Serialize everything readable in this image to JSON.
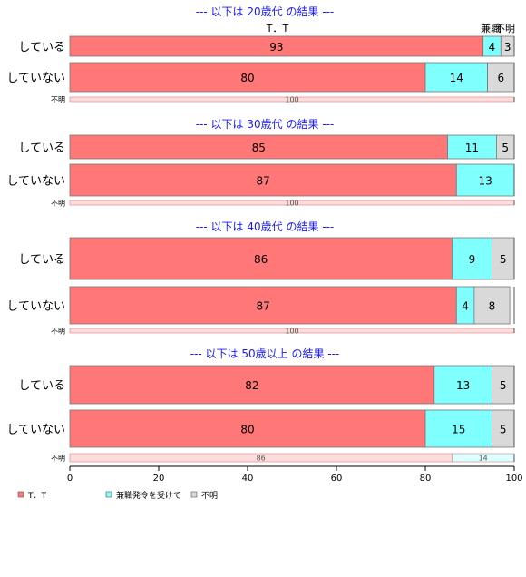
{
  "chart_data": {
    "type": "bar",
    "orientation": "horizontal",
    "stacked": true,
    "xlim": [
      0,
      100
    ],
    "x_ticks": [
      "0",
      "20",
      "40",
      "60",
      "80",
      "100"
    ],
    "column_headers": [
      "T．T",
      "兼職",
      "不明"
    ],
    "legend": {
      "placement": "bottom-left",
      "entries": [
        {
          "label": "T．T",
          "color": "#ff7777"
        },
        {
          "label": "兼職発令を受けて",
          "color": "#80ffff"
        },
        {
          "label": "不明",
          "color": "#d9d9d9"
        }
      ]
    },
    "series_colors": [
      "#ff7777",
      "#80ffff",
      "#d9d9d9"
    ],
    "small_row_colors": [
      "#ffdcdc",
      "#dcffff",
      "#f0f0f0"
    ],
    "panels": [
      {
        "title": "--- 以下は 20歳代 の結果 ---",
        "rows": [
          {
            "label": "している",
            "values": [
              93,
              4,
              3
            ]
          },
          {
            "label": "していない",
            "values": [
              80,
              14,
              6
            ]
          },
          {
            "label": "不明",
            "values": [
              100,
              0,
              0
            ],
            "small": true
          }
        ]
      },
      {
        "title": "--- 以下は 30歳代 の結果 ---",
        "rows": [
          {
            "label": "している",
            "values": [
              85,
              11,
              5
            ]
          },
          {
            "label": "していない",
            "values": [
              87,
              13,
              0
            ]
          },
          {
            "label": "不明",
            "values": [
              100,
              0,
              0
            ],
            "small": true
          }
        ]
      },
      {
        "title": "--- 以下は 40歳代 の結果 ---",
        "rows": [
          {
            "label": "している",
            "values": [
              86,
              9,
              5
            ]
          },
          {
            "label": "していない",
            "values": [
              87,
              4,
              8
            ]
          },
          {
            "label": "不明",
            "values": [
              100,
              0,
              0
            ],
            "small": true
          }
        ]
      },
      {
        "title": "--- 以下は 50歳以上 の結果 ---",
        "rows": [
          {
            "label": "している",
            "values": [
              82,
              13,
              5
            ]
          },
          {
            "label": "していない",
            "values": [
              80,
              15,
              5
            ]
          },
          {
            "label": "不明",
            "values": [
              86,
              14,
              0
            ],
            "small": true
          }
        ]
      }
    ]
  }
}
